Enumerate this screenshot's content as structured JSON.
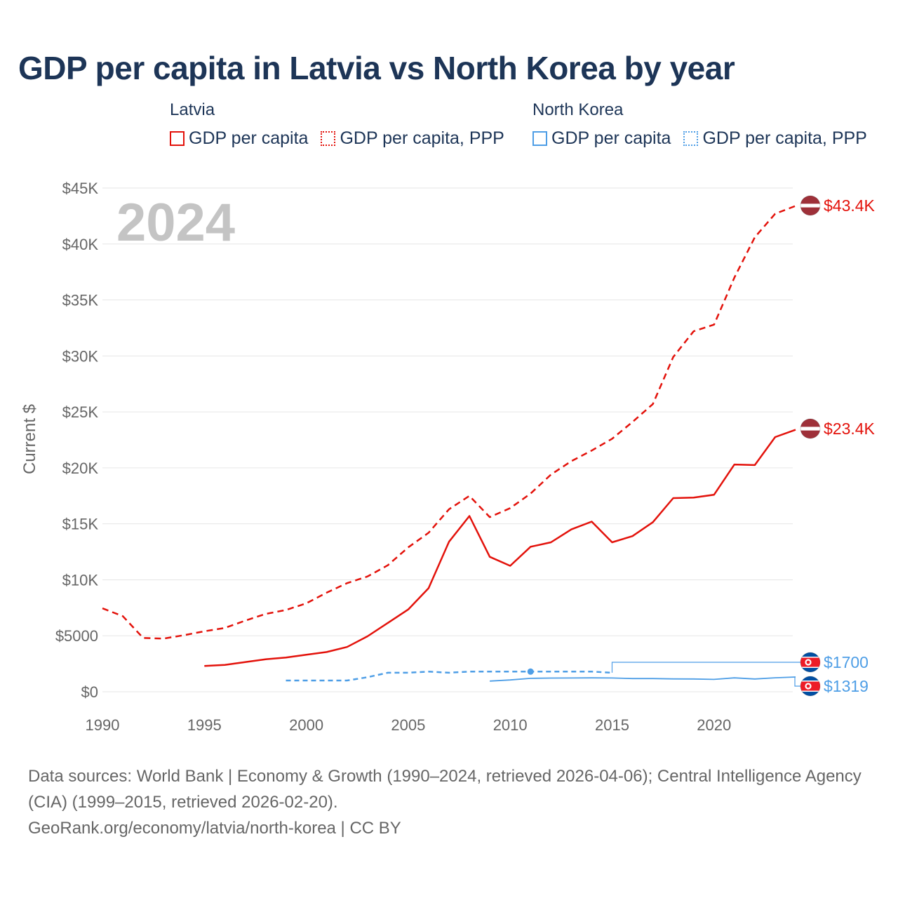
{
  "title": "GDP per capita in Latvia vs North Korea by year",
  "legend": {
    "groups": [
      {
        "name": "Latvia",
        "color": "#e3120b",
        "items": [
          "GDP per capita",
          "GDP per capita, PPP"
        ]
      },
      {
        "name": "North Korea",
        "color": "#4e9ee6",
        "items": [
          "GDP per capita",
          "GDP per capita, PPP"
        ]
      }
    ]
  },
  "footer": {
    "sources": "Data sources: World Bank | Economy & Growth (1990–2024, retrieved 2026-04-06); Central Intelligence Agency (CIA) (1999–2015, retrieved 2026-02-20).",
    "credit": "GeoRank.org/economy/latvia/north-korea | CC BY"
  },
  "colors": {
    "latvia": "#e3120b",
    "north_korea": "#4e9ee6",
    "year_watermark": "#c4c4c4"
  },
  "chart_data": {
    "type": "line",
    "title": "GDP per capita in Latvia vs North Korea by year",
    "year_label": "2024",
    "ylabel": "Current $",
    "xlabel": "",
    "xlim": [
      1990,
      2024
    ],
    "ylim": [
      0,
      45000
    ],
    "x_ticks": [
      1990,
      1995,
      2000,
      2005,
      2010,
      2015,
      2020
    ],
    "y_ticks": [
      {
        "value": 0,
        "label": "$0"
      },
      {
        "value": 5000,
        "label": "$5000"
      },
      {
        "value": 10000,
        "label": "$10K"
      },
      {
        "value": 15000,
        "label": "$15K"
      },
      {
        "value": 20000,
        "label": "$20K"
      },
      {
        "value": 25000,
        "label": "$25K"
      },
      {
        "value": 30000,
        "label": "$30K"
      },
      {
        "value": 35000,
        "label": "$35K"
      },
      {
        "value": 40000,
        "label": "$40K"
      },
      {
        "value": 45000,
        "label": "$45K"
      }
    ],
    "grid": true,
    "series": [
      {
        "name": "Latvia GDP per capita",
        "country": "Latvia",
        "style": "solid",
        "x": [
          1995,
          1996,
          1997,
          1998,
          1999,
          2000,
          2001,
          2002,
          2003,
          2004,
          2005,
          2006,
          2007,
          2008,
          2009,
          2010,
          2011,
          2012,
          2013,
          2014,
          2015,
          2016,
          2017,
          2018,
          2019,
          2020,
          2021,
          2022,
          2023,
          2024
        ],
        "values": [
          2300,
          2400,
          2650,
          2900,
          3050,
          3300,
          3550,
          4000,
          4950,
          6150,
          7350,
          9250,
          13400,
          15700,
          12050,
          11250,
          12950,
          13350,
          14500,
          15200,
          13350,
          13900,
          15150,
          17300,
          17350,
          17600,
          20300,
          20250,
          22750,
          23400
        ],
        "end_label": "$23.4K"
      },
      {
        "name": "Latvia GDP per capita, PPP",
        "country": "Latvia",
        "style": "dashed",
        "x": [
          1990,
          1991,
          1992,
          1993,
          1994,
          1995,
          1996,
          1997,
          1998,
          1999,
          2000,
          2001,
          2002,
          2003,
          2004,
          2005,
          2006,
          2007,
          2008,
          2009,
          2010,
          2011,
          2012,
          2013,
          2014,
          2015,
          2016,
          2017,
          2018,
          2019,
          2020,
          2021,
          2022,
          2023,
          2024
        ],
        "values": [
          7450,
          6750,
          4800,
          4750,
          5050,
          5400,
          5700,
          6350,
          6950,
          7300,
          7900,
          8850,
          9700,
          10300,
          11300,
          12900,
          14200,
          16300,
          17500,
          15600,
          16400,
          17700,
          19400,
          20600,
          21550,
          22600,
          24100,
          25700,
          29900,
          32200,
          32800,
          37000,
          40600,
          42700,
          43400
        ],
        "end_label": "$43.4K"
      },
      {
        "name": "North Korea GDP per capita",
        "country": "North Korea",
        "style": "solid",
        "x": [
          2009,
          2010,
          2011,
          2012,
          2013,
          2014,
          2015,
          2016,
          2017,
          2018,
          2019,
          2020,
          2021,
          2022,
          2023,
          2024
        ],
        "values": [
          950,
          1050,
          1200,
          1220,
          1230,
          1240,
          1230,
          1180,
          1180,
          1150,
          1140,
          1100,
          1240,
          1140,
          1250,
          1319
        ],
        "end_label": "$1319"
      },
      {
        "name": "North Korea GDP per capita, PPP",
        "country": "North Korea",
        "style": "dotted",
        "x": [
          1999,
          2000,
          2001,
          2002,
          2003,
          2004,
          2005,
          2006,
          2007,
          2008,
          2009,
          2010,
          2011,
          2012,
          2013,
          2014,
          2015
        ],
        "values": [
          1000,
          1000,
          1000,
          1000,
          1300,
          1700,
          1700,
          1800,
          1700,
          1800,
          1800,
          1800,
          1800,
          1800,
          1800,
          1800,
          1700
        ],
        "end_label": "$1700"
      }
    ]
  }
}
